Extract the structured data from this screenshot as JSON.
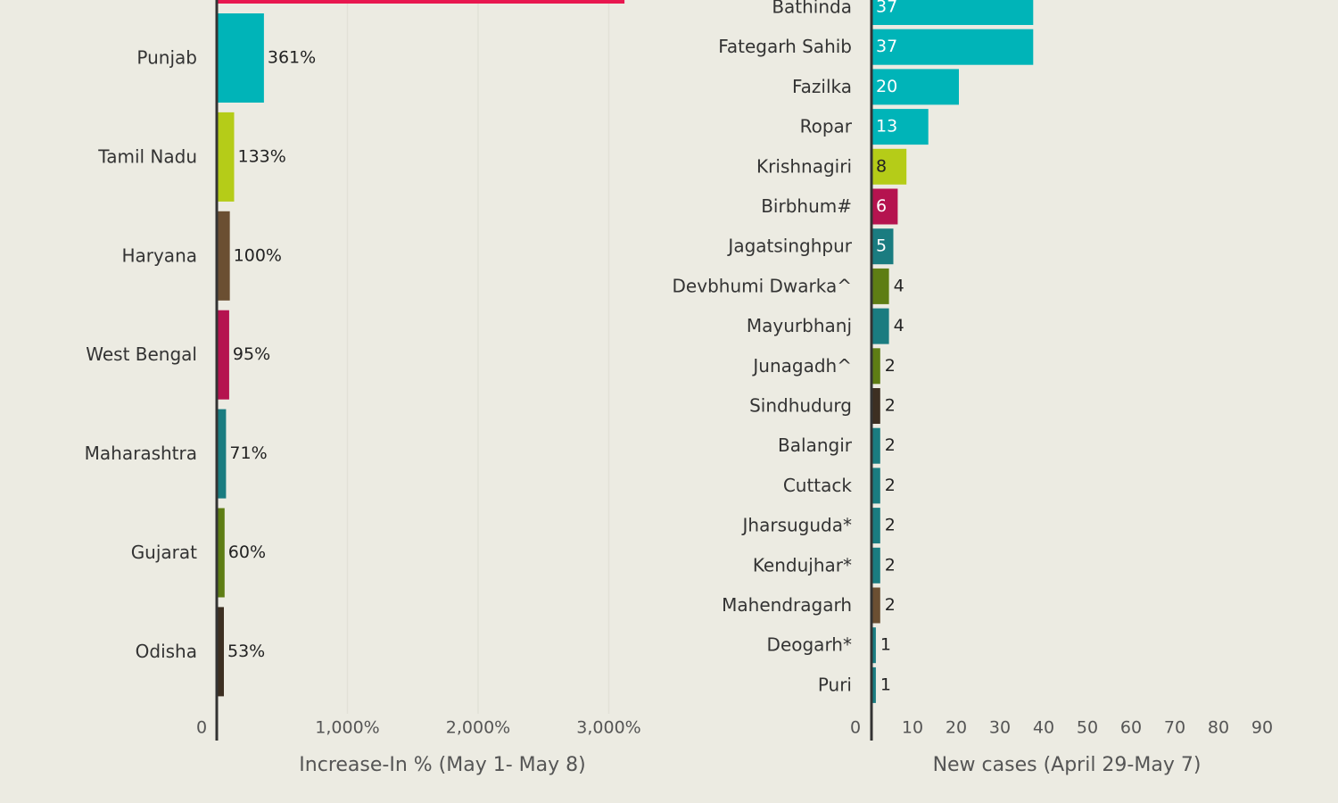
{
  "chart_data": [
    {
      "type": "bar",
      "orientation": "horizontal",
      "xlabel": "Increase-In % (May 1- May 8)",
      "ylabel": "",
      "xlim": [
        0,
        3500
      ],
      "ticks": [
        {
          "value": 0,
          "label": "0"
        },
        {
          "value": 1000,
          "label": "1,000%"
        },
        {
          "value": 2000,
          "label": "2,000%"
        },
        {
          "value": 3000,
          "label": "3,000%"
        }
      ],
      "grid": true,
      "partial_top_bar": {
        "value": 3120,
        "color": "#e8174f"
      },
      "bars": [
        {
          "category": "Punjab",
          "value": 361,
          "label": "361%",
          "color": "#00b4b8"
        },
        {
          "category": "Tamil Nadu",
          "value": 133,
          "label": "133%",
          "color": "#b5cc18"
        },
        {
          "category": "Haryana",
          "value": 100,
          "label": "100%",
          "color": "#6b4f32"
        },
        {
          "category": "West Bengal",
          "value": 95,
          "label": "95%",
          "color": "#b5134f"
        },
        {
          "category": "Maharashtra",
          "value": 71,
          "label": "71%",
          "color": "#1a7c80"
        },
        {
          "category": "Gujarat",
          "value": 60,
          "label": "60%",
          "color": "#5e7d14"
        },
        {
          "category": "Odisha",
          "value": 53,
          "label": "53%",
          "color": "#3d2f22"
        }
      ]
    },
    {
      "type": "bar",
      "orientation": "horizontal",
      "xlabel": "New cases (April 29-May 7)",
      "ylabel": "",
      "xlim": [
        0,
        90
      ],
      "ticks": [
        {
          "value": 0,
          "label": "0"
        },
        {
          "value": 10,
          "label": "10"
        },
        {
          "value": 20,
          "label": "20"
        },
        {
          "value": 30,
          "label": "30"
        },
        {
          "value": 40,
          "label": "40"
        },
        {
          "value": 50,
          "label": "50"
        },
        {
          "value": 60,
          "label": "60"
        },
        {
          "value": 70,
          "label": "70"
        },
        {
          "value": 80,
          "label": "80"
        },
        {
          "value": 90,
          "label": "90"
        }
      ],
      "grid": false,
      "bars": [
        {
          "category": "Bathinda",
          "value": 37,
          "label": "37",
          "color": "#00b4b8"
        },
        {
          "category": "Fategarh Sahib",
          "value": 37,
          "label": "37",
          "color": "#00b4b8"
        },
        {
          "category": "Fazilka",
          "value": 20,
          "label": "20",
          "color": "#00b4b8"
        },
        {
          "category": "Ropar",
          "value": 13,
          "label": "13",
          "color": "#00b4b8"
        },
        {
          "category": "Krishnagiri",
          "value": 8,
          "label": "8",
          "color": "#b5cc18"
        },
        {
          "category": "Birbhum#",
          "value": 6,
          "label": "6",
          "color": "#b5134f"
        },
        {
          "category": "Jagatsinghpur",
          "value": 5,
          "label": "5",
          "color": "#1a7c80"
        },
        {
          "category": "Devbhumi Dwarka^",
          "value": 4,
          "label": "4",
          "color": "#5e7d14"
        },
        {
          "category": "Mayurbhanj",
          "value": 4,
          "label": "4",
          "color": "#1a7c80"
        },
        {
          "category": "Junagadh^",
          "value": 2,
          "label": "2",
          "color": "#5e7d14"
        },
        {
          "category": "Sindhudurg",
          "value": 2,
          "label": "2",
          "color": "#3d2f22"
        },
        {
          "category": "Balangir",
          "value": 2,
          "label": "2",
          "color": "#1a7c80"
        },
        {
          "category": "Cuttack",
          "value": 2,
          "label": "2",
          "color": "#1a7c80"
        },
        {
          "category": "Jharsuguda*",
          "value": 2,
          "label": "2",
          "color": "#1a7c80"
        },
        {
          "category": "Kendujhar*",
          "value": 2,
          "label": "2",
          "color": "#1a7c80"
        },
        {
          "category": "Mahendragarh",
          "value": 2,
          "label": "2",
          "color": "#6b4f32"
        },
        {
          "category": "Deogarh*",
          "value": 1,
          "label": "1",
          "color": "#1a7c80"
        },
        {
          "category": "Puri",
          "value": 1,
          "label": "1",
          "color": "#1a7c80"
        }
      ]
    }
  ]
}
